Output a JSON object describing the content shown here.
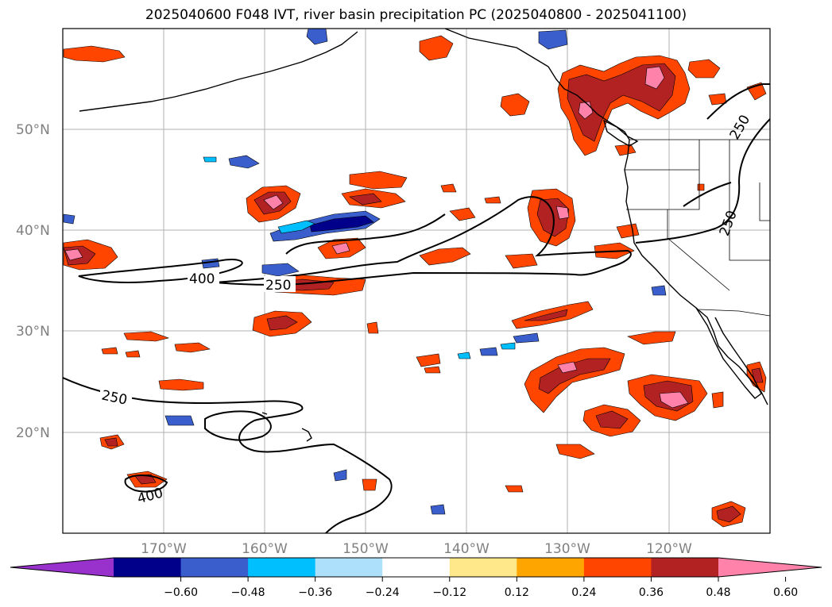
{
  "title": "2025040600 F048 IVT, river basin precipitation PC (2025040800 - 2025041100)",
  "latitude_labels": [
    "50°N",
    "40°N",
    "30°N",
    "20°N"
  ],
  "longitude_labels": [
    "170°W",
    "160°W",
    "150°W",
    "140°W",
    "130°W",
    "120°W"
  ],
  "ivt_contour_labels": [
    "400",
    "250",
    "250",
    "250",
    "400",
    "250"
  ],
  "colorbar": {
    "tick_labels": [
      "−0.60",
      "−0.48",
      "−0.36",
      "−0.24",
      "−0.12",
      "0.12",
      "0.24",
      "0.36",
      "0.48",
      "0.60"
    ],
    "colors": [
      "#9932CC",
      "#00008B",
      "#3A5FCD",
      "#00BFFF",
      "#ADE0FA",
      "#FFFFFF",
      "#FFE88A",
      "#FFA500",
      "#FF4500",
      "#B22222",
      "#FF82AB"
    ]
  },
  "map_extent": {
    "lon_range": [
      "180°W",
      "110°W"
    ],
    "lat_range": [
      "10°N",
      "60°N"
    ]
  }
}
